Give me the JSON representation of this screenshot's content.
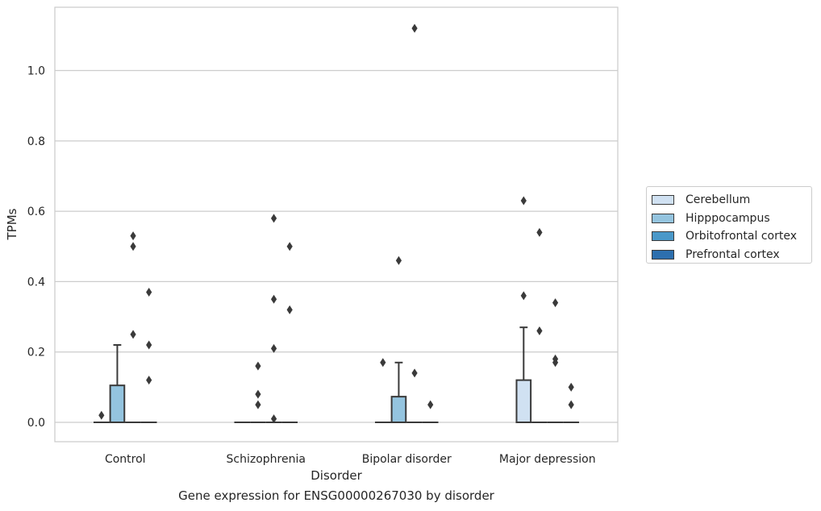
{
  "chart_data": {
    "type": "box",
    "title": "Gene expression for ENSG00000267030 by disorder",
    "xlabel": "Disorder",
    "ylabel": "TPMs",
    "ylim": [
      -0.055,
      1.18
    ],
    "yticks": [
      0.0,
      0.2,
      0.4,
      0.6,
      0.8,
      1.0
    ],
    "ytick_labels": [
      "0.0",
      "0.2",
      "0.4",
      "0.6",
      "0.8",
      "1.0"
    ],
    "categories": [
      "Control",
      "Schizophrenia",
      "Bipolar disorder",
      "Major depression"
    ],
    "grid": true,
    "legend_placement": "right",
    "series": [
      {
        "name": "Cerebellum",
        "color": "#d0e1f2",
        "boxes": [
          {
            "q1": 0,
            "median": 0,
            "q3": 0,
            "whisker_low": 0,
            "whisker_high": 0,
            "outliers": [
              0.02
            ]
          },
          {
            "q1": 0,
            "median": 0,
            "q3": 0,
            "whisker_low": 0,
            "whisker_high": 0,
            "outliers": []
          },
          {
            "q1": 0,
            "median": 0,
            "q3": 0,
            "whisker_low": 0,
            "whisker_high": 0,
            "outliers": [
              0.17
            ]
          },
          {
            "q1": 0,
            "median": 0,
            "q3": 0.12,
            "whisker_low": 0,
            "whisker_high": 0.27,
            "outliers": [
              0.63,
              0.36
            ]
          }
        ]
      },
      {
        "name": "Hipppocampus",
        "color": "#94c4df",
        "boxes": [
          {
            "q1": 0,
            "median": 0,
            "q3": 0.105,
            "whisker_low": 0,
            "whisker_high": 0.22,
            "outliers": []
          },
          {
            "q1": 0,
            "median": 0,
            "q3": 0,
            "whisker_low": 0,
            "whisker_high": 0,
            "outliers": [
              0.16,
              0.08,
              0.05
            ]
          },
          {
            "q1": 0,
            "median": 0,
            "q3": 0.073,
            "whisker_low": 0,
            "whisker_high": 0.17,
            "outliers": [
              0.46
            ]
          },
          {
            "q1": 0,
            "median": 0,
            "q3": 0,
            "whisker_low": 0,
            "whisker_high": 0,
            "outliers": [
              0.54,
              0.26
            ]
          }
        ]
      },
      {
        "name": "Orbitofrontal cortex",
        "color": "#4a98c9",
        "boxes": [
          {
            "q1": 0,
            "median": 0,
            "q3": 0,
            "whisker_low": 0,
            "whisker_high": 0,
            "outliers": [
              0.53,
              0.5,
              0.25
            ]
          },
          {
            "q1": 0,
            "median": 0,
            "q3": 0,
            "whisker_low": 0,
            "whisker_high": 0,
            "outliers": [
              0.58,
              0.35,
              0.21,
              0.01
            ]
          },
          {
            "q1": 0,
            "median": 0,
            "q3": 0,
            "whisker_low": 0,
            "whisker_high": 0,
            "outliers": [
              1.12,
              0.14
            ]
          },
          {
            "q1": 0,
            "median": 0,
            "q3": 0,
            "whisker_low": 0,
            "whisker_high": 0,
            "outliers": [
              0.34,
              0.18,
              0.17
            ]
          }
        ]
      },
      {
        "name": "Prefrontal cortex",
        "color": "#2d6fae",
        "boxes": [
          {
            "q1": 0,
            "median": 0,
            "q3": 0,
            "whisker_low": 0,
            "whisker_high": 0,
            "outliers": [
              0.37,
              0.22,
              0.12
            ]
          },
          {
            "q1": 0,
            "median": 0,
            "q3": 0,
            "whisker_low": 0,
            "whisker_high": 0,
            "outliers": [
              0.5,
              0.32
            ]
          },
          {
            "q1": 0,
            "median": 0,
            "q3": 0,
            "whisker_low": 0,
            "whisker_high": 0,
            "outliers": [
              0.05
            ]
          },
          {
            "q1": 0,
            "median": 0,
            "q3": 0,
            "whisker_low": 0,
            "whisker_high": 0,
            "outliers": [
              0.1,
              0.05
            ]
          }
        ]
      }
    ]
  }
}
